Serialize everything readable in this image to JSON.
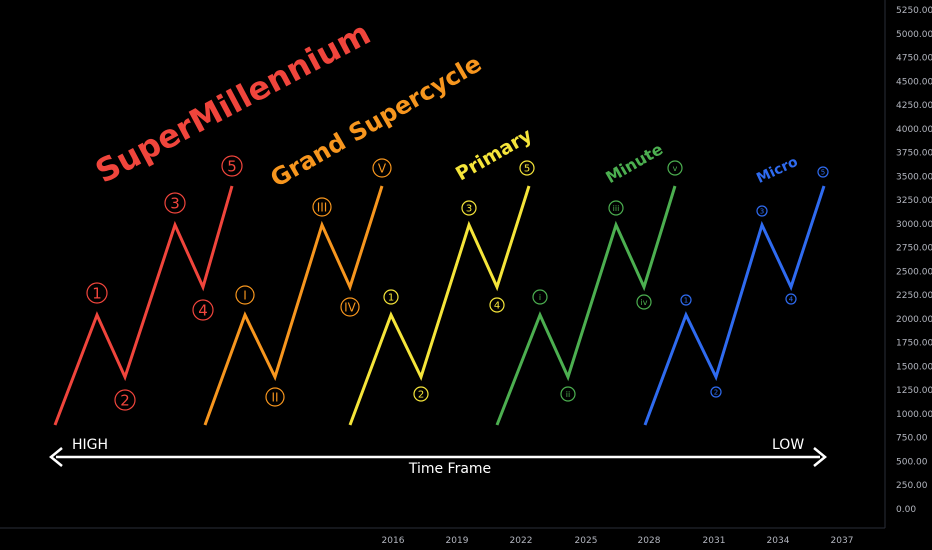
{
  "price_axis": [
    "5250.00",
    "5000.00",
    "4750.00",
    "4500.00",
    "4250.00",
    "4000.00",
    "3750.00",
    "3500.00",
    "3250.00",
    "3000.00",
    "2750.00",
    "2500.00",
    "2250.00",
    "2000.00",
    "1750.00",
    "1500.00",
    "1250.00",
    "1000.00",
    "750.00",
    "500.00",
    "250.00",
    "0.00"
  ],
  "time_axis": [
    "2016",
    "2019",
    "2022",
    "2025",
    "2028",
    "2031",
    "2034",
    "2037"
  ],
  "degrees": [
    {
      "title": "SuperMillennium",
      "labels": [
        "1",
        "2",
        "3",
        "4",
        "5"
      ]
    },
    {
      "title": "Grand Supercycle",
      "labels": [
        "I",
        "II",
        "III",
        "IV",
        "V"
      ]
    },
    {
      "title": "Primary",
      "labels": [
        "1",
        "2",
        "3",
        "4",
        "5"
      ]
    },
    {
      "title": "Minute",
      "labels": [
        "i",
        "ii",
        "iii",
        "iv",
        "v"
      ]
    },
    {
      "title": "Micro",
      "labels": [
        "1",
        "2",
        "3",
        "4",
        "5"
      ]
    }
  ],
  "arrow": {
    "left": "HIGH",
    "right": "LOW",
    "label": "Time Frame"
  }
}
